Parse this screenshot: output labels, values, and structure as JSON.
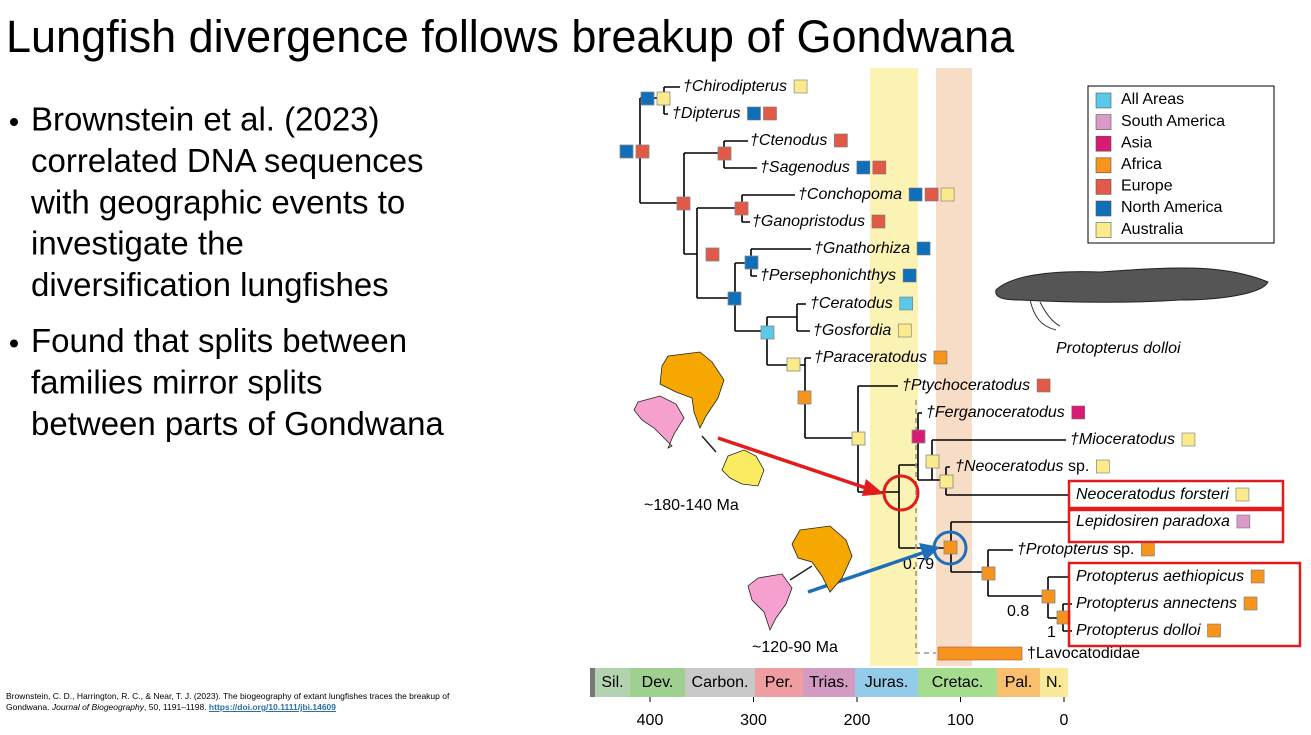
{
  "title": "Lungfish divergence follows breakup of Gondwana",
  "bullets": [
    [
      "Brownstein et al. (2023)",
      "correlated DNA sequences",
      "with geographic events to",
      "investigate the",
      "diversification lungfishes"
    ],
    [
      "Found that splits between",
      "families mirror splits",
      "between parts of Gondwana"
    ]
  ],
  "citation": {
    "text": "Brownstein, C. D., Harrington, R. C., & Near, T. J. (2023). The biogeography of extant lungfishes traces the breakup of Gondwana. ",
    "journal": "Journal of Biogeography",
    "details": ", 50, 1191–1198. ",
    "doi": "https://doi.org/10.1111/jbi.14609"
  },
  "legend": [
    {
      "name": "All Areas",
      "color": "#5bc8ea"
    },
    {
      "name": "South America",
      "color": "#d99ac8"
    },
    {
      "name": "Asia",
      "color": "#d81b72"
    },
    {
      "name": "Africa",
      "color": "#f7941d"
    },
    {
      "name": "Europe",
      "color": "#e05a47"
    },
    {
      "name": "North America",
      "color": "#0f6fb8"
    },
    {
      "name": "Australia",
      "color": "#fbeb8c"
    }
  ],
  "taxa": [
    {
      "name": "†Chirodipterus",
      "colors": [
        "#fbeb8c"
      ]
    },
    {
      "name": "†Dipterus",
      "colors": [
        "#0f6fb8",
        "#e05a47"
      ]
    },
    {
      "name": "†Ctenodus",
      "colors": [
        "#e05a47"
      ]
    },
    {
      "name": "†Sagenodus",
      "colors": [
        "#0f6fb8",
        "#e05a47"
      ]
    },
    {
      "name": "†Conchopoma",
      "colors": [
        "#0f6fb8",
        "#e05a47",
        "#fbeb8c"
      ]
    },
    {
      "name": "†Ganopristodus",
      "colors": [
        "#e05a47"
      ]
    },
    {
      "name": "†Gnathorhiza",
      "colors": [
        "#0f6fb8"
      ]
    },
    {
      "name": "†Persephonichthys",
      "colors": [
        "#0f6fb8"
      ]
    },
    {
      "name": "†Ceratodus",
      "colors": [
        "#5bc8ea"
      ]
    },
    {
      "name": "†Gosfordia",
      "colors": [
        "#fbeb8c"
      ]
    },
    {
      "name": "†Paraceratodus",
      "colors": [
        "#f7941d"
      ]
    },
    {
      "name": "†Ptychoceratodus",
      "colors": [
        "#e05a47"
      ]
    },
    {
      "name": "†Ferganoceratodus",
      "colors": [
        "#d81b72"
      ]
    },
    {
      "name": "†Mioceratodus",
      "colors": [
        "#fbeb8c"
      ]
    },
    {
      "name": "†Neoceratodus",
      "suffix": "sp.",
      "colors": [
        "#fbeb8c"
      ]
    },
    {
      "name": "Neoceratodus forsteri",
      "colors": [
        "#fbeb8c"
      ]
    },
    {
      "name": "Lepidosiren paradoxa",
      "colors": [
        "#d99ac8"
      ]
    },
    {
      "name": "†Protopterus",
      "suffix": "sp.",
      "colors": [
        "#f7941d"
      ]
    },
    {
      "name": "Protopterus aethiopicus",
      "colors": [
        "#f7941d"
      ]
    },
    {
      "name": "Protopterus annectens",
      "colors": [
        "#f7941d"
      ]
    },
    {
      "name": "Protopterus dolloi",
      "colors": [
        "#f7941d"
      ]
    }
  ],
  "outgroup": "†Lavocatodidae",
  "support": [
    "0.79",
    "0.8",
    "1"
  ],
  "maps": [
    "~180-140 Ma",
    "~120-90 Ma"
  ],
  "fish_caption": "Protopterus dolloi",
  "periods": [
    {
      "label": "Sil.",
      "color": "#b3d3b0"
    },
    {
      "label": "Dev.",
      "color": "#9fd08f"
    },
    {
      "label": "Carbon.",
      "color": "#c9c9c9"
    },
    {
      "label": "Per.",
      "color": "#ee9ea0"
    },
    {
      "label": "Trias.",
      "color": "#d39ac2"
    },
    {
      "label": "Juras.",
      "color": "#93cbe8"
    },
    {
      "label": "Cretac.",
      "color": "#a6dc8e"
    },
    {
      "label": "Pal.",
      "color": "#f8bf6e"
    },
    {
      "label": "N.",
      "color": "#fbe99a"
    }
  ],
  "axis_ticks": [
    400,
    300,
    200,
    100,
    0
  ]
}
